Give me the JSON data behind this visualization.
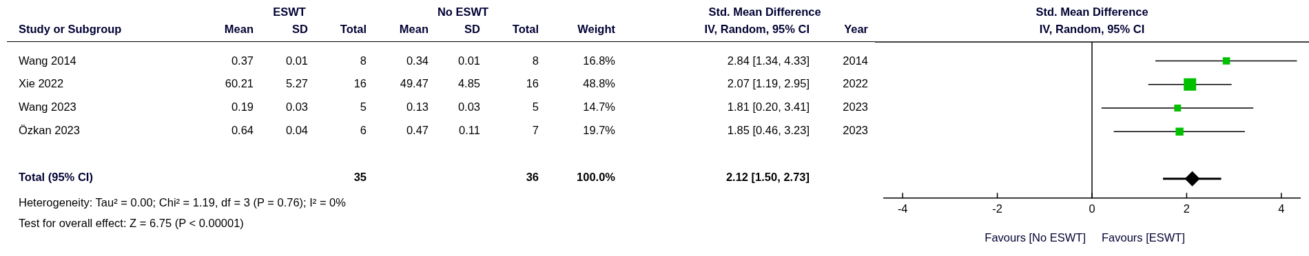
{
  "chart_data": [
    {
      "type": "other",
      "ylabel": "Study or Subgroup",
      "categories": [
        "Mean",
        "SD",
        "Total",
        "Mean",
        "SD",
        "Total",
        "Weight",
        "IV, Random, 95% CI",
        "Year"
      ],
      "y_categories": [
        "Wang 2014",
        "Xie 2022",
        "Wang 2023",
        "Özkan 2023",
        null,
        "Total (95% CI)"
      ],
      "cell_labels": [
        [
          "0.37",
          "0.01",
          "8",
          "0.34",
          "0.01",
          "8",
          "16.8%",
          "2.84 [1.34, 4.33]",
          "2014"
        ],
        [
          "60.21",
          "5.27",
          "16",
          "49.47",
          "4.85",
          "16",
          "48.8%",
          "2.07 [1.19, 2.95]",
          "2022"
        ],
        [
          "0.19",
          "0.03",
          "5",
          "0.13",
          "0.03",
          "5",
          "14.7%",
          "1.81 [0.20, 3.41]",
          "2023"
        ],
        [
          "0.64",
          "0.04",
          "6",
          "0.47",
          "0.11",
          "7",
          "19.7%",
          "1.85 [0.46, 3.23]",
          "2023"
        ],
        [
          null,
          null,
          null,
          null,
          null,
          null,
          null,
          null,
          null
        ],
        [
          null,
          null,
          "35",
          null,
          null,
          "36",
          "100.0%",
          "2.12 [1.50, 2.73]",
          null
        ]
      ],
      "annotations": [
        "ESWT",
        "No ESWT",
        "Std. Mean Difference",
        "Heterogeneity: Tau² = 0.00; Chi² = 1.19, df = 3 (P = 0.76); I² = 0%",
        "Test for overall effect: Z = 6.75 (P < 0.00001)"
      ]
    },
    {
      "type": "scatter",
      "title": "Std. Mean Difference",
      "subtitle": "IV, Random, 95% CI",
      "orientation": "horizontal",
      "categories": [
        null,
        null,
        null,
        null,
        null,
        null
      ],
      "xlim": [
        -4.4,
        4.4
      ],
      "xticks": [
        -4,
        -2,
        0,
        2,
        4
      ],
      "grid": false,
      "legend": false,
      "ref_lines": [
        {
          "axis": "x",
          "value": 0
        }
      ],
      "annotations": [
        "Favours [No ESWT]",
        "Favours [ESWT]"
      ],
      "series": [
        {
          "color": "#00c000",
          "marker": "square",
          "values": [
            2.84,
            2.07,
            1.81,
            1.85,
            null,
            null
          ],
          "errors": [
            [
              1.34,
              4.33
            ],
            [
              1.19,
              2.95
            ],
            [
              0.2,
              3.41
            ],
            [
              0.46,
              3.23
            ],
            null,
            null
          ],
          "sizes": [
            0.344,
            1,
            0.301,
            0.404,
            null,
            null
          ]
        },
        {
          "color": "#000000",
          "marker": "diamond",
          "values": [
            null,
            null,
            null,
            null,
            null,
            2.12
          ],
          "errors": [
            null,
            null,
            null,
            null,
            null,
            [
              1.5,
              2.73
            ]
          ]
        }
      ]
    }
  ]
}
